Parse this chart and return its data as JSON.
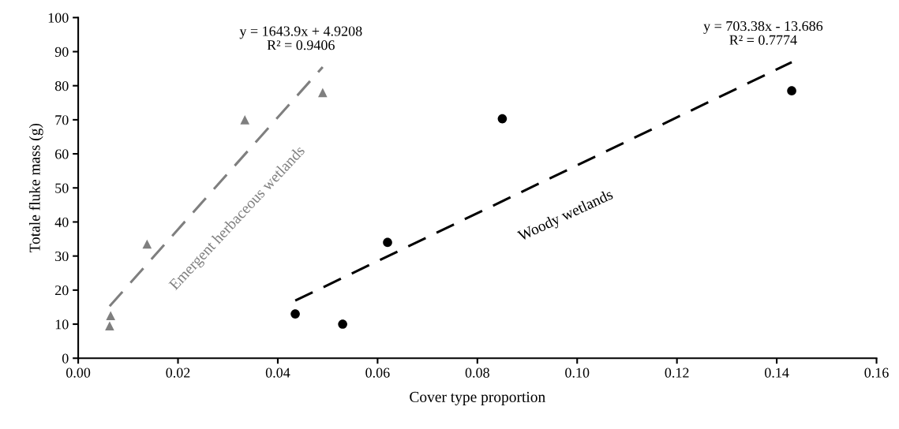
{
  "chart_data": {
    "type": "scatter",
    "xlabel": "Cover type proportion",
    "ylabel": "Totale fluke mass (g)",
    "xlim": [
      0,
      0.16
    ],
    "xticks": [
      {
        "value": 0,
        "label": "0.00"
      },
      {
        "value": 0.02,
        "label": "0.02"
      },
      {
        "value": 0.04,
        "label": "0.04"
      },
      {
        "value": 0.06,
        "label": "0.06"
      },
      {
        "value": 0.08,
        "label": "0.08"
      },
      {
        "value": 0.1,
        "label": "0.10"
      },
      {
        "value": 0.12,
        "label": "0.12"
      },
      {
        "value": 0.14,
        "label": "0.14"
      },
      {
        "value": 0.16,
        "label": "0.16"
      }
    ],
    "ylim": [
      0,
      100
    ],
    "yticks": [
      0,
      10,
      20,
      30,
      40,
      50,
      60,
      70,
      80,
      90,
      100
    ],
    "grid": false,
    "legend": false,
    "series": [
      {
        "name": "Emergent herbaceous wetlands",
        "color": "#7f7f7f",
        "marker": "triangle",
        "x": [
          0.0063,
          0.0065,
          0.0138,
          0.0334,
          0.049
        ],
        "values": [
          9.5,
          12.5,
          33.5,
          70,
          78
        ]
      },
      {
        "type": "line",
        "color": "#7f7f7f",
        "line_style": "dashed",
        "marker": "none",
        "x": [
          0.0063,
          0.049
        ],
        "values": [
          15.3,
          85.5
        ]
      },
      {
        "name": "Woody wetlands",
        "color": "#000000",
        "marker": "circle",
        "x": [
          0.0435,
          0.053,
          0.062,
          0.085,
          0.143
        ],
        "values": [
          13,
          10,
          34,
          70.3,
          78.5
        ]
      },
      {
        "type": "line",
        "color": "#000000",
        "line_style": "dashed",
        "marker": "none",
        "x": [
          0.0435,
          0.143
        ],
        "values": [
          16.9,
          86.9
        ]
      }
    ],
    "annotations": [
      "y = 1643.9x + 4.9208\nR² = 0.9406",
      "y = 703.38x - 13.686\nR² = 0.7774"
    ]
  }
}
